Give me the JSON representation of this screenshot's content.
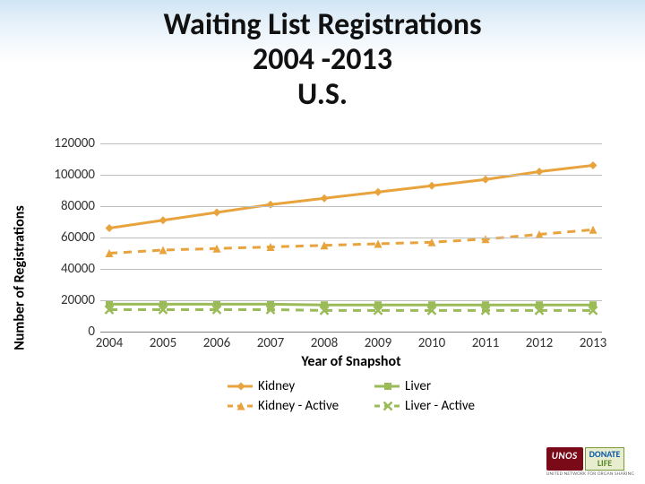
{
  "title": {
    "line1": "Waiting List Registrations",
    "line2": "2004 -2013",
    "line3": "U.S.",
    "fontsize": 34,
    "color": "#111111"
  },
  "chart": {
    "type": "line",
    "ylabel": "Number of Registrations",
    "xlabel": "Year of Snapshot",
    "label_fontsize": 16,
    "ylim": [
      0,
      120000
    ],
    "ytick_step": 20000,
    "yticks": [
      "0",
      "20000",
      "40000",
      "60000",
      "80000",
      "100000",
      "120000"
    ],
    "xvalues": [
      2004,
      2005,
      2006,
      2007,
      2008,
      2009,
      2010,
      2011,
      2012,
      2013
    ],
    "xlabels": [
      "2004",
      "2005",
      "2006",
      "2007",
      "2008",
      "2009",
      "2010",
      "2011",
      "2012",
      "2013"
    ],
    "grid_color": "#bfbfbf",
    "axis_color": "#808080",
    "background_color": "#ffffff",
    "series": [
      {
        "name": "Kidney",
        "color": "#e8a33d",
        "marker": "diamond",
        "dash": "solid",
        "line_width": 3,
        "marker_size": 9,
        "values": [
          66000,
          71000,
          76000,
          81000,
          85000,
          89000,
          93000,
          97000,
          102000,
          106000
        ]
      },
      {
        "name": "Liver",
        "color": "#9bbb59",
        "marker": "square",
        "dash": "solid",
        "line_width": 3,
        "marker_size": 8,
        "values": [
          17500,
          17500,
          17500,
          17500,
          17000,
          17000,
          17000,
          17000,
          17000,
          17000
        ]
      },
      {
        "name": "Kidney - Active",
        "color": "#e8a33d",
        "marker": "triangle",
        "dash": "dashed",
        "line_width": 3,
        "marker_size": 9,
        "values": [
          50000,
          52000,
          53000,
          54000,
          55000,
          56000,
          57000,
          59000,
          62000,
          65000
        ]
      },
      {
        "name": "Liver - Active",
        "color": "#9bbb59",
        "marker": "x",
        "dash": "dashed",
        "line_width": 3,
        "marker_size": 9,
        "values": [
          14000,
          14000,
          14000,
          14000,
          13500,
          13500,
          13500,
          13500,
          13500,
          13500
        ]
      }
    ]
  },
  "logo": {
    "unos": "UNOS",
    "donate1": "DONATE",
    "donate2": "LIFE",
    "tagline": "UNITED NETWORK FOR ORGAN SHARING"
  }
}
